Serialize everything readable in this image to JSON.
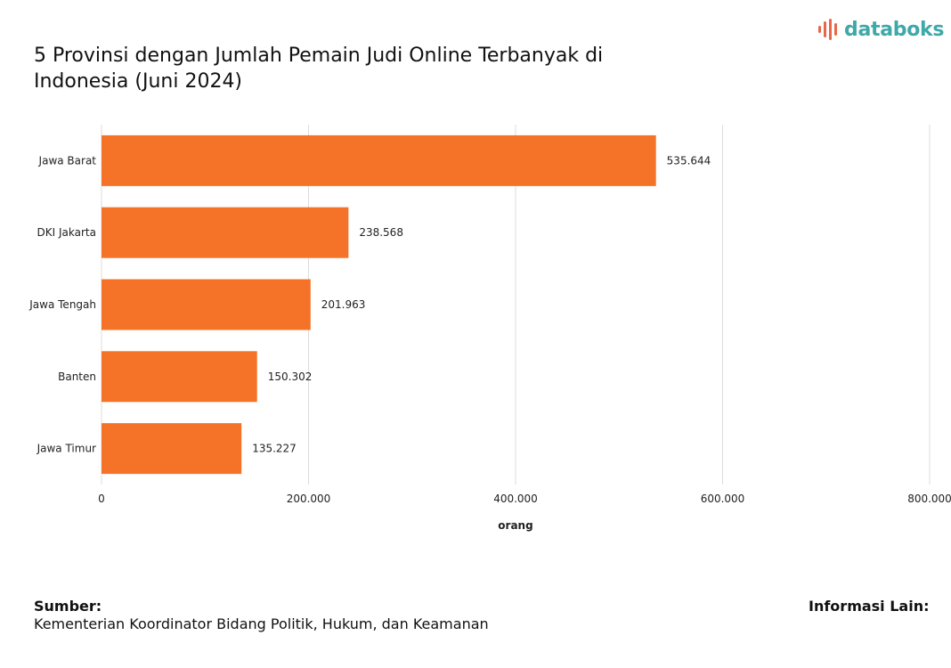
{
  "brand": {
    "name": "databoks",
    "icon": "databoks-logo-icon",
    "color": "#3fa8a8",
    "accent": "#e8664a"
  },
  "footer": {
    "source_label": "Sumber:",
    "source_text": "Kementerian Koordinator Bidang Politik, Hukum, dan Keamanan",
    "info_label": "Informasi Lain:"
  },
  "chart_data": {
    "type": "bar",
    "orientation": "horizontal",
    "title": "5 Provinsi dengan Jumlah Pemain Judi Online Terbanyak di Indonesia (Juni 2024)",
    "xlabel": "orang",
    "ylabel": "",
    "categories": [
      "Jawa Barat",
      "DKI Jakarta",
      "Jawa Tengah",
      "Banten",
      "Jawa Timur"
    ],
    "values": [
      535644,
      238568,
      201963,
      150302,
      135227
    ],
    "value_labels": [
      "535.644",
      "238.568",
      "201.963",
      "150.302",
      "135.227"
    ],
    "xlim": [
      0,
      800000
    ],
    "x_ticks": [
      0,
      200000,
      400000,
      600000,
      800000
    ],
    "x_tick_labels": [
      "0",
      "200.000",
      "400.000",
      "600.000",
      "800.000"
    ],
    "bar_color": "#f47328",
    "grid": true,
    "legend": "none"
  }
}
